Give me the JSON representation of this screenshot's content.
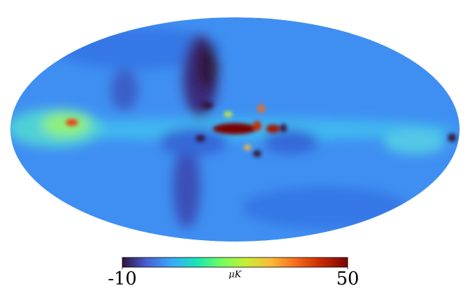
{
  "colorbar": {
    "range": [
      -10,
      50
    ],
    "ticks": [
      -10,
      50
    ],
    "label": "μK"
  }
}
